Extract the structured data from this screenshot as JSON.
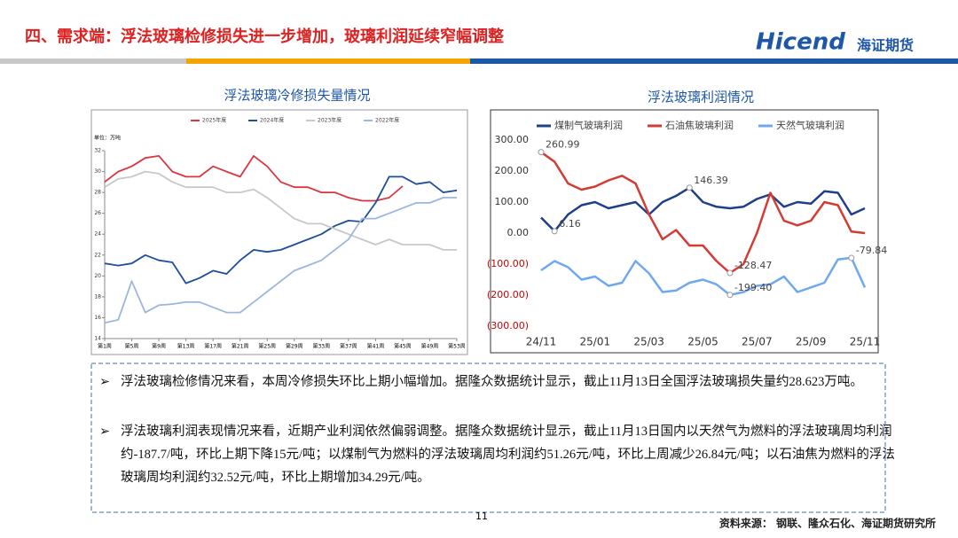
{
  "header": {
    "title": "四、需求端：浮法玻璃检修损失进一步增加，玻璃利润延续窄幅调整",
    "logo": "Hicend",
    "logo_sub": "海证期货"
  },
  "chart_data": [
    {
      "type": "line",
      "title": "浮法玻璃冷修损失量情况",
      "y_label": "单位：万吨",
      "x": [
        1,
        3,
        5,
        7,
        9,
        11,
        13,
        15,
        17,
        19,
        21,
        23,
        25,
        27,
        29,
        31,
        33,
        35,
        37,
        39,
        41,
        43,
        45,
        47,
        49,
        51,
        53
      ],
      "xlim": [
        1,
        53
      ],
      "xticks": [
        {
          "value": 1,
          "label": "第1周"
        },
        {
          "value": 5,
          "label": "第5周"
        },
        {
          "value": 9,
          "label": "第9周"
        },
        {
          "value": 13,
          "label": "第13周"
        },
        {
          "value": 17,
          "label": "第17周"
        },
        {
          "value": 21,
          "label": "第21周"
        },
        {
          "value": 25,
          "label": "第25周"
        },
        {
          "value": 29,
          "label": "第29周"
        },
        {
          "value": 33,
          "label": "第33周"
        },
        {
          "value": 37,
          "label": "第37周"
        },
        {
          "value": 41,
          "label": "第41周"
        },
        {
          "value": 45,
          "label": "第45周"
        },
        {
          "value": 49,
          "label": "第49周"
        },
        {
          "value": 53,
          "label": "第53周"
        }
      ],
      "ylim": [
        14,
        32
      ],
      "yticks": [
        14,
        16,
        18,
        20,
        22,
        24,
        26,
        28,
        30,
        32
      ],
      "grid": false,
      "legend": "top",
      "series": [
        {
          "name": "2025年度",
          "color": "#d9363e",
          "values": [
            29,
            30,
            30.5,
            31.3,
            31.5,
            30,
            29.5,
            29.5,
            30.5,
            30,
            29.5,
            31.5,
            30.5,
            29,
            28.5,
            28.5,
            28,
            28,
            27.5,
            27.2,
            27.2,
            27.5,
            28.6,
            null,
            null,
            null,
            null
          ]
        },
        {
          "name": "2024年度",
          "color": "#1f4e9c",
          "values": [
            21.2,
            21,
            21.2,
            22,
            21.5,
            21.3,
            19.3,
            19.8,
            20.5,
            20.2,
            21.5,
            22.5,
            22.3,
            22.5,
            23,
            23.5,
            24,
            24.8,
            25.3,
            25.2,
            27,
            29.5,
            29.5,
            28.8,
            29,
            28,
            28.2
          ]
        },
        {
          "name": "2023年度",
          "color": "#c8c8c8",
          "values": [
            28.5,
            29.3,
            29.5,
            30,
            29.8,
            29,
            28.5,
            28.5,
            28.5,
            28,
            28,
            28.3,
            27.5,
            26.5,
            25.5,
            25,
            25,
            24.5,
            24,
            23.5,
            23,
            23.5,
            23,
            23,
            23,
            22.5,
            22.5
          ]
        },
        {
          "name": "2022年度",
          "color": "#9fb6dc",
          "values": [
            15.5,
            15.8,
            19.5,
            16.5,
            17.2,
            17.3,
            17.5,
            17.5,
            17,
            16.5,
            16.5,
            17.5,
            18.5,
            19.5,
            20.5,
            21,
            21.5,
            22.5,
            23.5,
            25.5,
            25.5,
            26,
            26.5,
            27,
            27,
            27.5,
            27.5
          ]
        }
      ]
    },
    {
      "type": "line",
      "title": "浮法玻璃利润情况",
      "categories": [
        "24/11",
        null,
        null,
        null,
        "25/01",
        null,
        null,
        null,
        "25/03",
        null,
        null,
        null,
        "25/05",
        null,
        null,
        null,
        "25/07",
        null,
        null,
        null,
        "25/09",
        null,
        null,
        null,
        "25/11"
      ],
      "ylim": [
        -300,
        300
      ],
      "yticks": [
        {
          "value": 300,
          "label": "300.00"
        },
        {
          "value": 200,
          "label": "200.00"
        },
        {
          "value": 100,
          "label": "100.00"
        },
        {
          "value": 0,
          "label": "0.00"
        },
        {
          "value": -100,
          "label": "(100.00)"
        },
        {
          "value": -200,
          "label": "(200.00)"
        },
        {
          "value": -300,
          "label": "(300.00)"
        }
      ],
      "grid": false,
      "legend": "top",
      "series": [
        {
          "name": "煤制气玻璃利润",
          "color": "#1f3f8a",
          "values": [
            50,
            6.16,
            60,
            90,
            100,
            80,
            90,
            100,
            60,
            100,
            120,
            146.39,
            100,
            85,
            80,
            85,
            110,
            125,
            85,
            100,
            95,
            135,
            130,
            60,
            80
          ],
          "value_labels": [
            null,
            "6.16",
            null,
            null,
            null,
            null,
            null,
            null,
            null,
            null,
            null,
            "146.39",
            null,
            null,
            null,
            null,
            null,
            null,
            null,
            null,
            null,
            null,
            null,
            null,
            null
          ]
        },
        {
          "name": "石油焦玻璃利润",
          "color": "#d23c35",
          "values": [
            260.99,
            230,
            160,
            140,
            150,
            170,
            185,
            160,
            60,
            -20,
            10,
            -40,
            -40,
            -90,
            -128.47,
            -100,
            0,
            130,
            40,
            25,
            40,
            100,
            90,
            5,
            0
          ],
          "value_labels": [
            "260.99",
            null,
            null,
            null,
            null,
            null,
            null,
            null,
            null,
            null,
            null,
            null,
            null,
            null,
            "-128.47",
            null,
            null,
            null,
            null,
            null,
            null,
            null,
            null,
            null,
            null
          ]
        },
        {
          "name": "天然气玻璃利润",
          "color": "#6fa8f0",
          "values": [
            -120,
            -90,
            -110,
            -150,
            -140,
            -170,
            -160,
            -90,
            -130,
            -190,
            -185,
            -160,
            -150,
            -165,
            -199.4,
            -190,
            -170,
            -165,
            -140,
            -190,
            -175,
            -160,
            -85,
            -79.84,
            -175
          ],
          "value_labels": [
            null,
            null,
            null,
            null,
            null,
            null,
            null,
            null,
            null,
            null,
            null,
            null,
            null,
            null,
            "-199.40",
            null,
            null,
            null,
            null,
            null,
            null,
            null,
            null,
            "-79.84",
            null
          ]
        }
      ]
    }
  ],
  "bullets": [
    "浮法玻璃检修情况来看，本周冷修损失环比上期小幅增加。据隆众数据统计显示，截止11月13日全国浮法玻璃损失量约28.623万吨。",
    "浮法玻璃利润表现情况来看，近期产业利润依然偏弱调整。据隆众数据统计显示，截止11月13日国内以天然气为燃料的浮法玻璃周均利润约-187.7/吨，环比上期下降15元/吨；以煤制气为燃料的浮法玻璃周均利润约51.26元/吨，环比上周减少26.84元/吨；以石油焦为燃料的浮法玻璃周均利润约32.52元/吨，环比上期增加34.29元/吨。"
  ],
  "footer": {
    "page": "11",
    "source": "资料来源：  钢联、隆众石化、海证期货研究所"
  }
}
